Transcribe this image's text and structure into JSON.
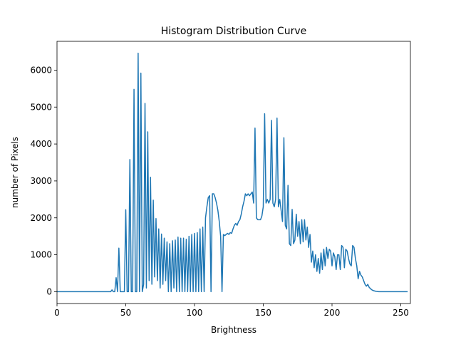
{
  "chart_data": {
    "type": "line",
    "title": "Histogram Distribution Curve",
    "xlabel": "Brightness",
    "ylabel": "number of Pixels",
    "color": "#1f77b4",
    "xlim": [
      0,
      257
    ],
    "ylim": [
      -320,
      6780
    ],
    "xticks": [
      0,
      50,
      100,
      150,
      200,
      250
    ],
    "yticks": [
      0,
      1000,
      2000,
      3000,
      4000,
      5000,
      6000
    ],
    "x": [
      0,
      1,
      2,
      3,
      4,
      5,
      6,
      7,
      8,
      9,
      10,
      11,
      12,
      13,
      14,
      15,
      16,
      17,
      18,
      19,
      20,
      21,
      22,
      23,
      24,
      25,
      26,
      27,
      28,
      29,
      30,
      31,
      32,
      33,
      34,
      35,
      36,
      37,
      38,
      39,
      40,
      41,
      42,
      43,
      44,
      45,
      46,
      47,
      48,
      49,
      50,
      51,
      52,
      53,
      54,
      55,
      56,
      57,
      58,
      59,
      60,
      61,
      62,
      63,
      64,
      65,
      66,
      67,
      68,
      69,
      70,
      71,
      72,
      73,
      74,
      75,
      76,
      77,
      78,
      79,
      80,
      81,
      82,
      83,
      84,
      85,
      86,
      87,
      88,
      89,
      90,
      91,
      92,
      93,
      94,
      95,
      96,
      97,
      98,
      99,
      100,
      101,
      102,
      103,
      104,
      105,
      106,
      107,
      108,
      109,
      110,
      111,
      112,
      113,
      114,
      115,
      116,
      117,
      118,
      119,
      120,
      121,
      122,
      123,
      124,
      125,
      126,
      127,
      128,
      129,
      130,
      131,
      132,
      133,
      134,
      135,
      136,
      137,
      138,
      139,
      140,
      141,
      142,
      143,
      144,
      145,
      146,
      147,
      148,
      149,
      150,
      151,
      152,
      153,
      154,
      155,
      156,
      157,
      158,
      159,
      160,
      161,
      162,
      163,
      164,
      165,
      166,
      167,
      168,
      169,
      170,
      171,
      172,
      173,
      174,
      175,
      176,
      177,
      178,
      179,
      180,
      181,
      182,
      183,
      184,
      185,
      186,
      187,
      188,
      189,
      190,
      191,
      192,
      193,
      194,
      195,
      196,
      197,
      198,
      199,
      200,
      201,
      202,
      203,
      204,
      205,
      206,
      207,
      208,
      209,
      210,
      211,
      212,
      213,
      214,
      215,
      216,
      217,
      218,
      219,
      220,
      221,
      222,
      223,
      224,
      225,
      226,
      227,
      228,
      229,
      230,
      231,
      232,
      233,
      234,
      235,
      236,
      237,
      238,
      239,
      240,
      241,
      242,
      243,
      244,
      245,
      246,
      247,
      248,
      249,
      250,
      251,
      252,
      253,
      254,
      255
    ],
    "values": [
      0,
      0,
      0,
      0,
      0,
      0,
      0,
      0,
      0,
      0,
      0,
      0,
      0,
      0,
      0,
      0,
      0,
      0,
      0,
      0,
      0,
      0,
      0,
      0,
      0,
      0,
      0,
      0,
      0,
      0,
      0,
      0,
      0,
      0,
      0,
      0,
      0,
      0,
      0,
      0,
      50,
      0,
      0,
      380,
      0,
      1180,
      0,
      0,
      0,
      0,
      2220,
      0,
      0,
      3580,
      0,
      0,
      5480,
      0,
      0,
      6460,
      0,
      5920,
      0,
      200,
      5100,
      100,
      4330,
      300,
      3100,
      200,
      2480,
      400,
      1980,
      300,
      1700,
      100,
      1560,
      200,
      1450,
      300,
      1350,
      0,
      1300,
      0,
      1380,
      100,
      1400,
      0,
      1480,
      0,
      1450,
      0,
      1450,
      0,
      1420,
      0,
      1500,
      0,
      1550,
      0,
      1580,
      0,
      1600,
      0,
      1700,
      0,
      1750,
      0,
      2000,
      2300,
      2550,
      2600,
      0,
      2650,
      2650,
      2550,
      2400,
      2200,
      1900,
      1500,
      0,
      1550,
      1520,
      1550,
      1580,
      1550,
      1600,
      1580,
      1700,
      1800,
      1850,
      1800,
      1900,
      1950,
      2100,
      2300,
      2450,
      2650,
      2600,
      2650,
      2600,
      2650,
      2700,
      2400,
      4430,
      2000,
      1950,
      1950,
      1950,
      2050,
      2300,
      4820,
      2400,
      2500,
      2400,
      2500,
      4640,
      2400,
      2300,
      2500,
      4700,
      2300,
      2500,
      2200,
      1900,
      4170,
      1800,
      1700,
      2880,
      1300,
      1250,
      2230,
      1300,
      1400,
      2100,
      1500,
      1900,
      1300,
      1950,
      1350,
      1950,
      1400,
      1750,
      1200,
      1550,
      800,
      1100,
      650,
      1000,
      550,
      900,
      500,
      1050,
      600,
      1150,
      700,
      1200,
      900,
      1150,
      1100,
      700,
      1050,
      950,
      600,
      1000,
      1000,
      600,
      1250,
      1200,
      650,
      1150,
      1100,
      900,
      750,
      700,
      1250,
      1200,
      900,
      700,
      350,
      550,
      450,
      400,
      300,
      200,
      150,
      200,
      120,
      80,
      50,
      30,
      20,
      10,
      5,
      0,
      0,
      0,
      0,
      0,
      0,
      0,
      0,
      0,
      0,
      0,
      0,
      0,
      0,
      0,
      0,
      0,
      0,
      0,
      0,
      0,
      0
    ]
  }
}
